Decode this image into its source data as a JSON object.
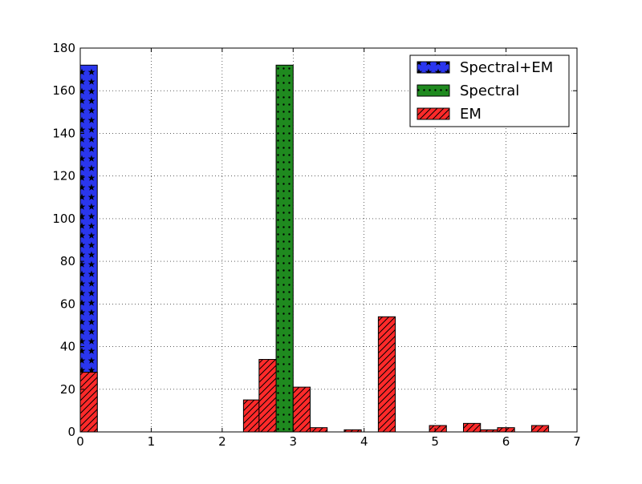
{
  "chart_data": {
    "type": "bar",
    "title": "",
    "xlabel": "",
    "ylabel": "",
    "xlim": [
      0,
      7
    ],
    "ylim": [
      0,
      180
    ],
    "xticks": [
      "0",
      "1",
      "2",
      "3",
      "4",
      "5",
      "6",
      "7"
    ],
    "yticks": [
      "0",
      "20",
      "40",
      "60",
      "80",
      "100",
      "120",
      "140",
      "160",
      "180"
    ],
    "grid": true,
    "legend_position": "top-right",
    "series": [
      {
        "name": "Spectral+EM",
        "color": "#2a36ee",
        "hatch": "stars",
        "bars": [
          {
            "x0": 0.0,
            "x1": 0.24,
            "value": 172
          }
        ]
      },
      {
        "name": "Spectral",
        "color": "#1f8a1f",
        "hatch": "dots",
        "bars": [
          {
            "x0": 2.76,
            "x1": 3.0,
            "value": 172
          }
        ]
      },
      {
        "name": "EM",
        "color": "#ff2a2a",
        "hatch": "diagonal",
        "bars": [
          {
            "x0": 0.0,
            "x1": 0.24,
            "value": 28
          },
          {
            "x0": 0.24,
            "x1": 0.48,
            "value": 0
          },
          {
            "x0": 0.48,
            "x1": 0.72,
            "value": 0
          },
          {
            "x0": 0.72,
            "x1": 0.96,
            "value": 0
          },
          {
            "x0": 0.96,
            "x1": 1.2,
            "value": 0
          },
          {
            "x0": 1.2,
            "x1": 1.44,
            "value": 0
          },
          {
            "x0": 1.44,
            "x1": 1.68,
            "value": 0
          },
          {
            "x0": 1.68,
            "x1": 1.92,
            "value": 0
          },
          {
            "x0": 1.92,
            "x1": 2.16,
            "value": 0
          },
          {
            "x0": 2.16,
            "x1": 2.3,
            "value": 0
          },
          {
            "x0": 2.3,
            "x1": 2.52,
            "value": 15
          },
          {
            "x0": 2.52,
            "x1": 2.76,
            "value": 34
          },
          {
            "x0": 3.0,
            "x1": 3.24,
            "value": 21
          },
          {
            "x0": 3.24,
            "x1": 3.48,
            "value": 2
          },
          {
            "x0": 3.48,
            "x1": 3.72,
            "value": 0
          },
          {
            "x0": 3.72,
            "x1": 3.96,
            "value": 1
          },
          {
            "x0": 3.96,
            "x1": 4.2,
            "value": 0
          },
          {
            "x0": 4.2,
            "x1": 4.44,
            "value": 54
          },
          {
            "x0": 4.44,
            "x1": 4.68,
            "value": 0
          },
          {
            "x0": 4.68,
            "x1": 4.92,
            "value": 0
          },
          {
            "x0": 4.92,
            "x1": 5.16,
            "value": 3
          },
          {
            "x0": 5.16,
            "x1": 5.4,
            "value": 0
          },
          {
            "x0": 5.4,
            "x1": 5.64,
            "value": 4
          },
          {
            "x0": 5.64,
            "x1": 5.88,
            "value": 1
          },
          {
            "x0": 5.88,
            "x1": 6.12,
            "value": 2
          },
          {
            "x0": 6.12,
            "x1": 6.36,
            "value": 0
          },
          {
            "x0": 6.36,
            "x1": 6.6,
            "value": 3
          }
        ]
      }
    ]
  }
}
